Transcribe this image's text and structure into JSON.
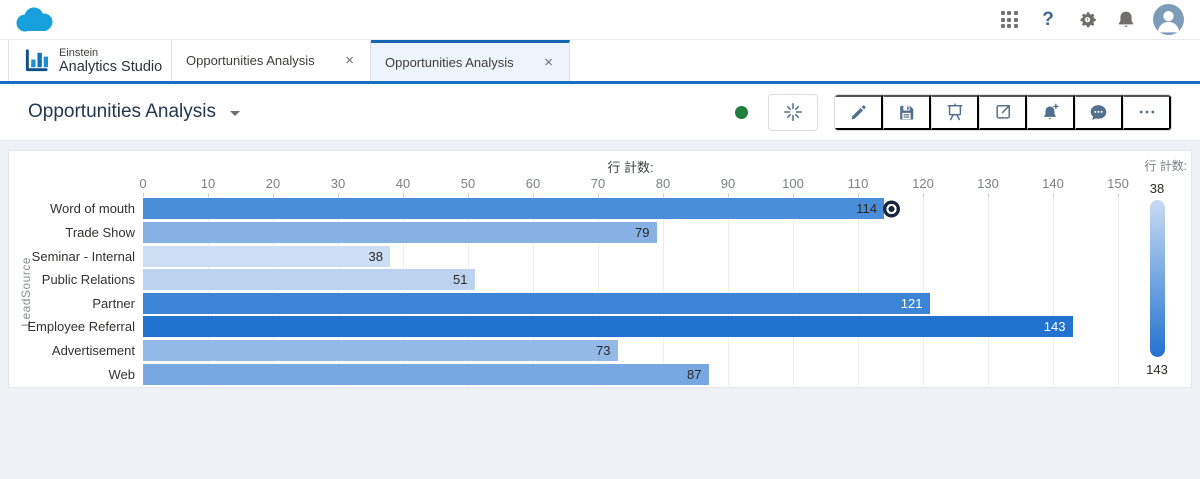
{
  "header": {
    "brand_icon": "salesforce-cloud",
    "icons": [
      "app-launcher",
      "help",
      "setup",
      "notifications",
      "profile"
    ],
    "help_glyph": "?"
  },
  "tabbar": {
    "product": {
      "line1": "Einstein",
      "line2": "Analytics Studio"
    },
    "close_glyph": "×",
    "tabs": [
      {
        "label": "Opportunities Analysis",
        "active": false
      },
      {
        "label": "Opportunities Analysis",
        "active": true
      }
    ]
  },
  "titlebar": {
    "title": "Opportunities Analysis",
    "status_color": "#1f7d3f",
    "buttons": [
      "einstein-assistant",
      "edit",
      "save",
      "present",
      "share",
      "subscribe",
      "annotations",
      "more"
    ]
  },
  "chart_data": {
    "type": "bar",
    "orientation": "horizontal",
    "title": "行 計数:",
    "xlabel": "行 計数:",
    "ylabel": "LeadSource",
    "xlim": [
      0,
      150
    ],
    "x_ticks": [
      0,
      10,
      20,
      30,
      40,
      50,
      60,
      70,
      80,
      90,
      100,
      110,
      120,
      130,
      140,
      150
    ],
    "grid": true,
    "categories": [
      "Word of mouth",
      "Trade Show",
      "Seminar - Internal",
      "Public Relations",
      "Partner",
      "Employee Referral",
      "Advertisement",
      "Web"
    ],
    "values": [
      114,
      79,
      38,
      51,
      121,
      143,
      73,
      87
    ],
    "bar_colors": [
      "#4a8ed9",
      "#87b1e5",
      "#cdddf3",
      "#bcd2ef",
      "#3c85d6",
      "#2273d0",
      "#93b9e8",
      "#78a8e2"
    ],
    "value_label_colors": [
      "#2b2826",
      "#2b2826",
      "#2b2826",
      "#2b2826",
      "#ffffff",
      "#ffffff",
      "#2b2826",
      "#2b2826"
    ],
    "cursor_marker": {
      "category": "Word of mouth",
      "value": 114
    },
    "legend": {
      "title": "行 計数:",
      "min": 38,
      "max": 143,
      "gradient_top": "#c9dbf3",
      "gradient_bottom": "#2273d0",
      "position": "right"
    }
  }
}
